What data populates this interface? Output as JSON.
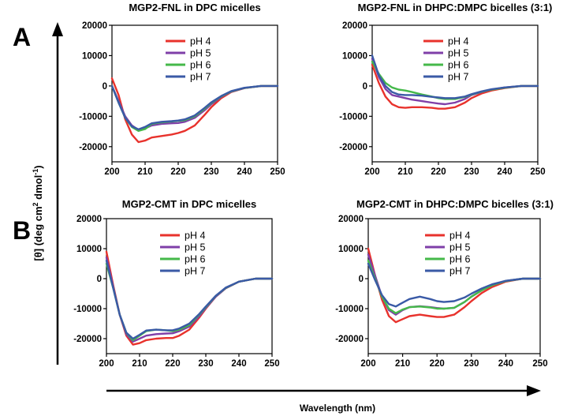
{
  "figure": {
    "panel_a_label": "A",
    "panel_b_label": "B",
    "ylabel": "[θ] (deg cm",
    "ylabel_sup1": "2",
    "ylabel_mid": " dmol",
    "ylabel_sup2": "-1",
    "ylabel_end": ")",
    "xlabel": "Wavelength (nm)"
  },
  "colors": {
    "pH 4": "#e8322c",
    "pH 5": "#7f3fa8",
    "pH 6": "#45b94a",
    "pH 7": "#3a5aa6"
  },
  "chart_data": [
    {
      "type": "line",
      "title": "MGP2-FNL in DPC micelles",
      "xlim": [
        200,
        250
      ],
      "ylim": [
        -25000,
        20000
      ],
      "xticks": [
        200,
        210,
        220,
        230,
        240,
        250
      ],
      "yticks": [
        20000,
        10000,
        0,
        -10000,
        -20000
      ],
      "x": [
        200,
        202,
        204,
        206,
        208,
        210,
        212,
        215,
        218,
        220,
        222,
        225,
        228,
        230,
        233,
        236,
        240,
        245,
        250
      ],
      "series": [
        {
          "name": "pH 4",
          "values": [
            2500,
            -3000,
            -11000,
            -16000,
            -18500,
            -18000,
            -17000,
            -16500,
            -16000,
            -15500,
            -14800,
            -13000,
            -9500,
            -7000,
            -4000,
            -2000,
            -700,
            0,
            0
          ]
        },
        {
          "name": "pH 5",
          "values": [
            0,
            -5000,
            -10000,
            -13000,
            -14500,
            -14000,
            -13000,
            -12500,
            -12300,
            -12200,
            -11800,
            -10500,
            -8000,
            -6000,
            -3600,
            -1900,
            -700,
            0,
            0
          ]
        },
        {
          "name": "pH 6",
          "values": [
            0,
            -5500,
            -10500,
            -13500,
            -14800,
            -14200,
            -12500,
            -12000,
            -11700,
            -11500,
            -11300,
            -10000,
            -7500,
            -5600,
            -3400,
            -1800,
            -650,
            0,
            0
          ]
        },
        {
          "name": "pH 7",
          "values": [
            0,
            -5500,
            -10500,
            -13300,
            -14300,
            -13500,
            -12300,
            -11800,
            -11600,
            -11400,
            -11000,
            -9700,
            -7200,
            -5400,
            -3300,
            -1700,
            -600,
            0,
            0
          ]
        }
      ]
    },
    {
      "type": "line",
      "title": "MGP2-FNL in DHPC:DMPC bicelles (3:1)",
      "xlim": [
        200,
        250
      ],
      "ylim": [
        -25000,
        20000
      ],
      "xticks": [
        200,
        210,
        220,
        230,
        240,
        250
      ],
      "yticks": [
        20000,
        10000,
        0,
        -10000,
        -20000
      ],
      "x": [
        200,
        202,
        204,
        206,
        208,
        210,
        212,
        215,
        218,
        220,
        222,
        225,
        228,
        230,
        233,
        236,
        240,
        245,
        250
      ],
      "series": [
        {
          "name": "pH 4",
          "values": [
            7000,
            1000,
            -3500,
            -6000,
            -7000,
            -7200,
            -7000,
            -7000,
            -7200,
            -7500,
            -7500,
            -7000,
            -5500,
            -4000,
            -2500,
            -1500,
            -700,
            0,
            0
          ]
        },
        {
          "name": "pH 5",
          "values": [
            9000,
            3000,
            -1000,
            -3000,
            -3500,
            -4000,
            -4500,
            -5000,
            -5500,
            -5800,
            -6000,
            -5500,
            -4300,
            -3000,
            -2000,
            -1200,
            -500,
            0,
            0
          ]
        },
        {
          "name": "pH 6",
          "values": [
            8000,
            4000,
            1000,
            -500,
            -1200,
            -1500,
            -2000,
            -2800,
            -3500,
            -4000,
            -4300,
            -4300,
            -3600,
            -2800,
            -1900,
            -1200,
            -600,
            0,
            0
          ]
        },
        {
          "name": "pH 7",
          "values": [
            10000,
            3500,
            0,
            -2000,
            -2800,
            -3000,
            -3000,
            -3200,
            -3600,
            -3800,
            -4000,
            -4000,
            -3500,
            -2700,
            -1800,
            -1100,
            -500,
            0,
            0
          ]
        }
      ]
    },
    {
      "type": "line",
      "title": "MGP2-CMT in DPC micelles",
      "xlim": [
        200,
        250
      ],
      "ylim": [
        -25000,
        20000
      ],
      "xticks": [
        200,
        210,
        220,
        230,
        240,
        250
      ],
      "yticks": [
        20000,
        10000,
        0,
        -10000,
        -20000
      ],
      "x": [
        200,
        202,
        204,
        206,
        208,
        210,
        212,
        215,
        218,
        220,
        222,
        225,
        228,
        230,
        233,
        236,
        240,
        245,
        250
      ],
      "series": [
        {
          "name": "pH 4",
          "values": [
            9000,
            -2000,
            -12000,
            -19000,
            -22000,
            -21500,
            -20500,
            -20000,
            -19800,
            -19800,
            -19000,
            -17000,
            -13000,
            -10000,
            -6000,
            -3200,
            -1000,
            0,
            0
          ]
        },
        {
          "name": "pH 5",
          "values": [
            7000,
            -2500,
            -12000,
            -18500,
            -21000,
            -20000,
            -19000,
            -18500,
            -18300,
            -18200,
            -17500,
            -16000,
            -12500,
            -9800,
            -6000,
            -3200,
            -1000,
            0,
            0
          ]
        },
        {
          "name": "pH 6",
          "values": [
            5000,
            -3000,
            -12000,
            -18000,
            -20500,
            -19000,
            -17500,
            -17000,
            -17200,
            -17500,
            -17000,
            -15500,
            -12000,
            -9500,
            -5800,
            -3100,
            -1000,
            0,
            0
          ]
        },
        {
          "name": "pH 7",
          "values": [
            6000,
            -3000,
            -12000,
            -18000,
            -20000,
            -18700,
            -17300,
            -17000,
            -17200,
            -17200,
            -16600,
            -15000,
            -11800,
            -9300,
            -5700,
            -3000,
            -1000,
            0,
            0
          ]
        }
      ]
    },
    {
      "type": "line",
      "title": "MGP2-CMT in DHPC:DMPC bicelles (3:1)",
      "xlim": [
        200,
        250
      ],
      "ylim": [
        -25000,
        20000
      ],
      "xticks": [
        200,
        210,
        220,
        230,
        240,
        250
      ],
      "yticks": [
        20000,
        10000,
        0,
        -10000,
        -20000
      ],
      "x": [
        200,
        202,
        204,
        206,
        208,
        210,
        212,
        215,
        218,
        220,
        222,
        225,
        228,
        230,
        233,
        236,
        240,
        245,
        250
      ],
      "series": [
        {
          "name": "pH 4",
          "values": [
            10000,
            1000,
            -7000,
            -12500,
            -14500,
            -13500,
            -12500,
            -12000,
            -12500,
            -12800,
            -12800,
            -12000,
            -9500,
            -7500,
            -4800,
            -2800,
            -1000,
            0,
            0
          ]
        },
        {
          "name": "pH 5",
          "values": [
            8000,
            1000,
            -6000,
            -10500,
            -12000,
            -10500,
            -9500,
            -9200,
            -9500,
            -9800,
            -10000,
            -9700,
            -7800,
            -6000,
            -3900,
            -2200,
            -800,
            0,
            0
          ]
        },
        {
          "name": "pH 6",
          "values": [
            6000,
            0,
            -6000,
            -10000,
            -11500,
            -10300,
            -9500,
            -9300,
            -9600,
            -10000,
            -10000,
            -9700,
            -7800,
            -6000,
            -3900,
            -2200,
            -800,
            0,
            0
          ]
        },
        {
          "name": "pH 7",
          "values": [
            5000,
            -500,
            -5500,
            -8500,
            -9300,
            -8000,
            -6800,
            -6000,
            -6800,
            -7500,
            -7800,
            -7500,
            -6300,
            -5000,
            -3300,
            -1900,
            -700,
            0,
            0
          ]
        }
      ]
    }
  ]
}
